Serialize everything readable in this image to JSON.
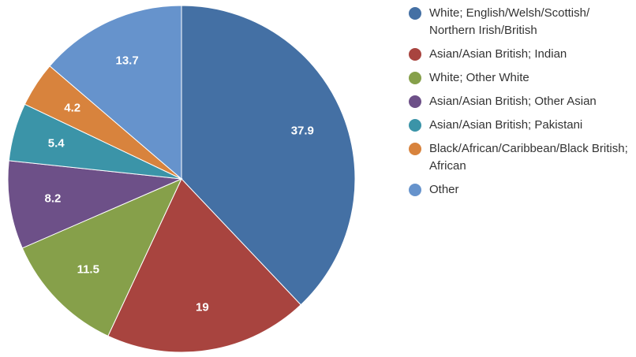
{
  "chart_data": {
    "type": "pie",
    "title": "",
    "slices": [
      {
        "label": "White; English/Welsh/Scottish/ Northern Irish/British",
        "value": 37.9,
        "display": "37.9",
        "color": "#4470a4"
      },
      {
        "label": "Asian/Asian British; Indian",
        "value": 19,
        "display": "19",
        "color": "#a8443f"
      },
      {
        "label": "White; Other White",
        "value": 11.5,
        "display": "11.5",
        "color": "#86a04a"
      },
      {
        "label": "Asian/Asian British; Other Asian",
        "value": 8.2,
        "display": "8.2",
        "color": "#6d5088"
      },
      {
        "label": "Asian/Asian British; Pakistani",
        "value": 5.4,
        "display": "5.4",
        "color": "#3b94a8"
      },
      {
        "label": "Black/African/Caribbean/Black British; African",
        "value": 4.2,
        "display": "4.2",
        "color": "#d8833d"
      },
      {
        "label": "Other",
        "value": 13.7,
        "display": "13.7",
        "color": "#6693cc"
      }
    ],
    "start_angle": "12 o'clock",
    "direction": "clockwise",
    "legend_position": "right"
  }
}
